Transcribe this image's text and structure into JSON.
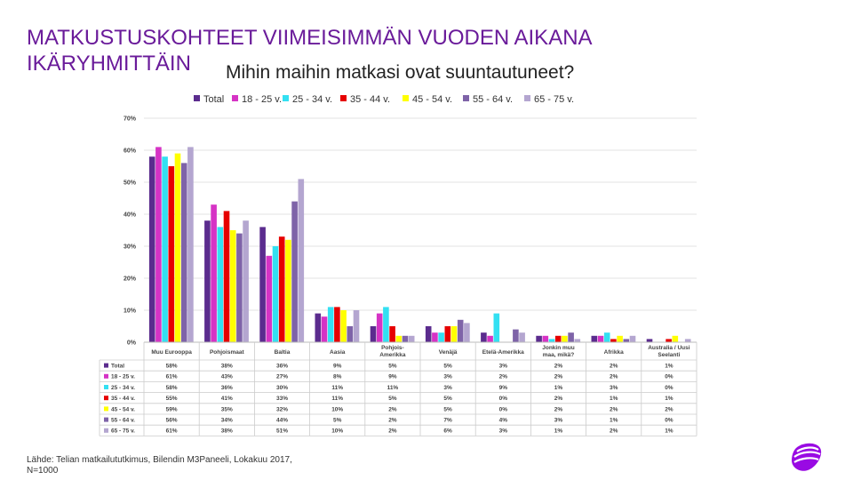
{
  "slide": {
    "title_line1": "MATKUSTUSKOHTEET VIIMEISIMMÄN VUODEN AIKANA",
    "title_line2": "IKÄRYHMITTÄIN",
    "question": "Mihin maihin matkasi ovat suuntautuneet?",
    "source_line1": "Lähde: Telian matkailututkimus, Bilendin M3Paneeli, Lokakuu 2017,",
    "source_line2": "N=1000",
    "logo_icon": "telia-pebble-icon"
  },
  "colors": {
    "title": "#6a1b9a",
    "Total": "#5b2c8e",
    "18 - 25 v.": "#d633c5",
    "25 - 34 v.": "#33e0f2",
    "35 - 44 v.": "#e60000",
    "45 - 54 v.": "#ffff00",
    "55 - 64 v.": "#7e63a8",
    "65 - 75 v.": "#b4a6d0"
  },
  "chart_data": {
    "type": "bar",
    "y_tick_labels": [
      "0%",
      "10%",
      "20%",
      "30%",
      "40%",
      "50%",
      "60%",
      "70%"
    ],
    "ylim": [
      0,
      70
    ],
    "grid": true,
    "legend_position": "top",
    "categories": [
      "Muu Eurooppa",
      "Pohjoismaat",
      "Baltia",
      "Aasia",
      "Pohjois-Amerikka",
      "Venäjä",
      "Etelä-Amerikka",
      "Jonkin muu maa, mikä?",
      "Afrikka",
      "Australia / Uusi Seelanti"
    ],
    "category_lines": [
      [
        "Muu Eurooppa"
      ],
      [
        "Pohjoismaat"
      ],
      [
        "Baltia"
      ],
      [
        "Aasia"
      ],
      [
        "Pohjois-",
        "Amerikka"
      ],
      [
        "Venäjä"
      ],
      [
        "Etelä-Amerikka"
      ],
      [
        "Jonkin muu",
        "maa, mikä?"
      ],
      [
        "Afrikka"
      ],
      [
        "Australia / Uusi",
        "Seelanti"
      ]
    ],
    "series": [
      {
        "name": "Total",
        "values": [
          58,
          38,
          36,
          9,
          5,
          5,
          3,
          2,
          2,
          1
        ],
        "labels": [
          "58%",
          "38%",
          "36%",
          "9%",
          "5%",
          "5%",
          "3%",
          "2%",
          "2%",
          "1%"
        ]
      },
      {
        "name": "18 - 25 v.",
        "values": [
          61,
          43,
          27,
          8,
          9,
          3,
          2,
          2,
          2,
          0
        ],
        "labels": [
          "61%",
          "43%",
          "27%",
          "8%",
          "9%",
          "3%",
          "2%",
          "2%",
          "2%",
          "0%"
        ]
      },
      {
        "name": "25 - 34 v.",
        "values": [
          58,
          36,
          30,
          11,
          11,
          3,
          9,
          1,
          3,
          0
        ],
        "labels": [
          "58%",
          "36%",
          "30%",
          "11%",
          "11%",
          "3%",
          "9%",
          "1%",
          "3%",
          "0%"
        ]
      },
      {
        "name": "35 - 44 v.",
        "values": [
          55,
          41,
          33,
          11,
          5,
          5,
          0,
          2,
          1,
          1
        ],
        "labels": [
          "55%",
          "41%",
          "33%",
          "11%",
          "5%",
          "5%",
          "0%",
          "2%",
          "1%",
          "1%"
        ]
      },
      {
        "name": "45 - 54 v.",
        "values": [
          59,
          35,
          32,
          10,
          2,
          5,
          0,
          2,
          2,
          2
        ],
        "labels": [
          "59%",
          "35%",
          "32%",
          "10%",
          "2%",
          "5%",
          "0%",
          "2%",
          "2%",
          "2%"
        ]
      },
      {
        "name": "55 - 64 v.",
        "values": [
          56,
          34,
          44,
          5,
          2,
          7,
          4,
          3,
          1,
          0
        ],
        "labels": [
          "56%",
          "34%",
          "44%",
          "5%",
          "2%",
          "7%",
          "4%",
          "3%",
          "1%",
          "0%"
        ]
      },
      {
        "name": "65 - 75 v.",
        "values": [
          61,
          38,
          51,
          10,
          2,
          6,
          3,
          1,
          2,
          1
        ],
        "labels": [
          "61%",
          "38%",
          "51%",
          "10%",
          "2%",
          "6%",
          "3%",
          "1%",
          "2%",
          "1%"
        ]
      }
    ]
  }
}
